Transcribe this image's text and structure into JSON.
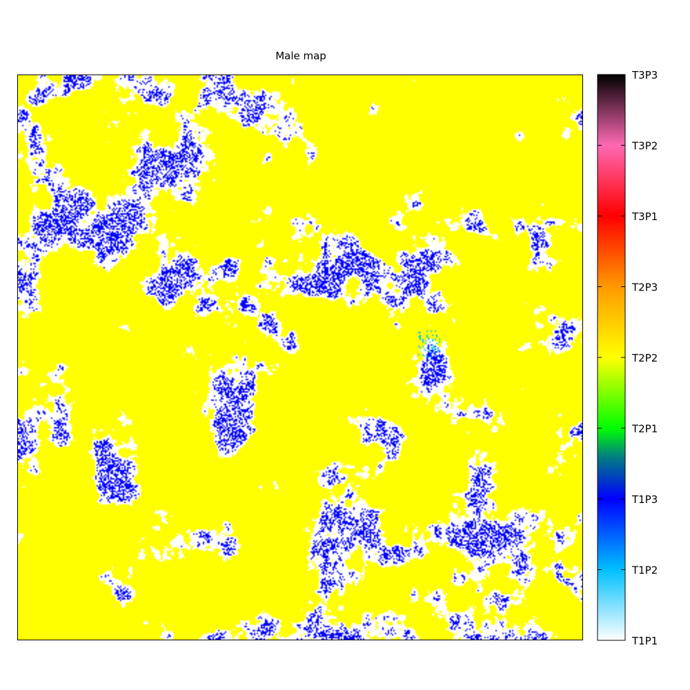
{
  "chart_data": {
    "type": "heatmap",
    "title": "Male map",
    "grid": false,
    "colorbar": {
      "position": "right",
      "ticks": [
        "T1P1",
        "T1P2",
        "T1P3",
        "T2P1",
        "T2P2",
        "T2P3",
        "T3P1",
        "T3P2",
        "T3P3"
      ],
      "stops": [
        {
          "value": 0.0,
          "color": "#ffffff"
        },
        {
          "value": 1.0,
          "color": "#00bfff"
        },
        {
          "value": 2.0,
          "color": "#0000ff"
        },
        {
          "value": 2.6,
          "color": "#008080"
        },
        {
          "value": 3.0,
          "color": "#00ff00"
        },
        {
          "value": 4.0,
          "color": "#ffff00"
        },
        {
          "value": 5.0,
          "color": "#ff9900"
        },
        {
          "value": 6.0,
          "color": "#ff0000"
        },
        {
          "value": 7.0,
          "color": "#ff69b4"
        },
        {
          "value": 8.0,
          "color": "#000000"
        }
      ]
    },
    "dominant_class": "T2P2",
    "classes_present": [
      "T1P1",
      "T1P2",
      "T1P3",
      "T2P2"
    ],
    "approx_fraction": {
      "T2P2": 0.72,
      "T1P1": 0.24,
      "T1P3": 0.038,
      "T1P2": 0.002
    },
    "colors": {
      "T2P2": "#ffff00",
      "T1P1": "#ffffff",
      "T1P3": "#0000ff",
      "T1P2": "#00bfff"
    }
  }
}
